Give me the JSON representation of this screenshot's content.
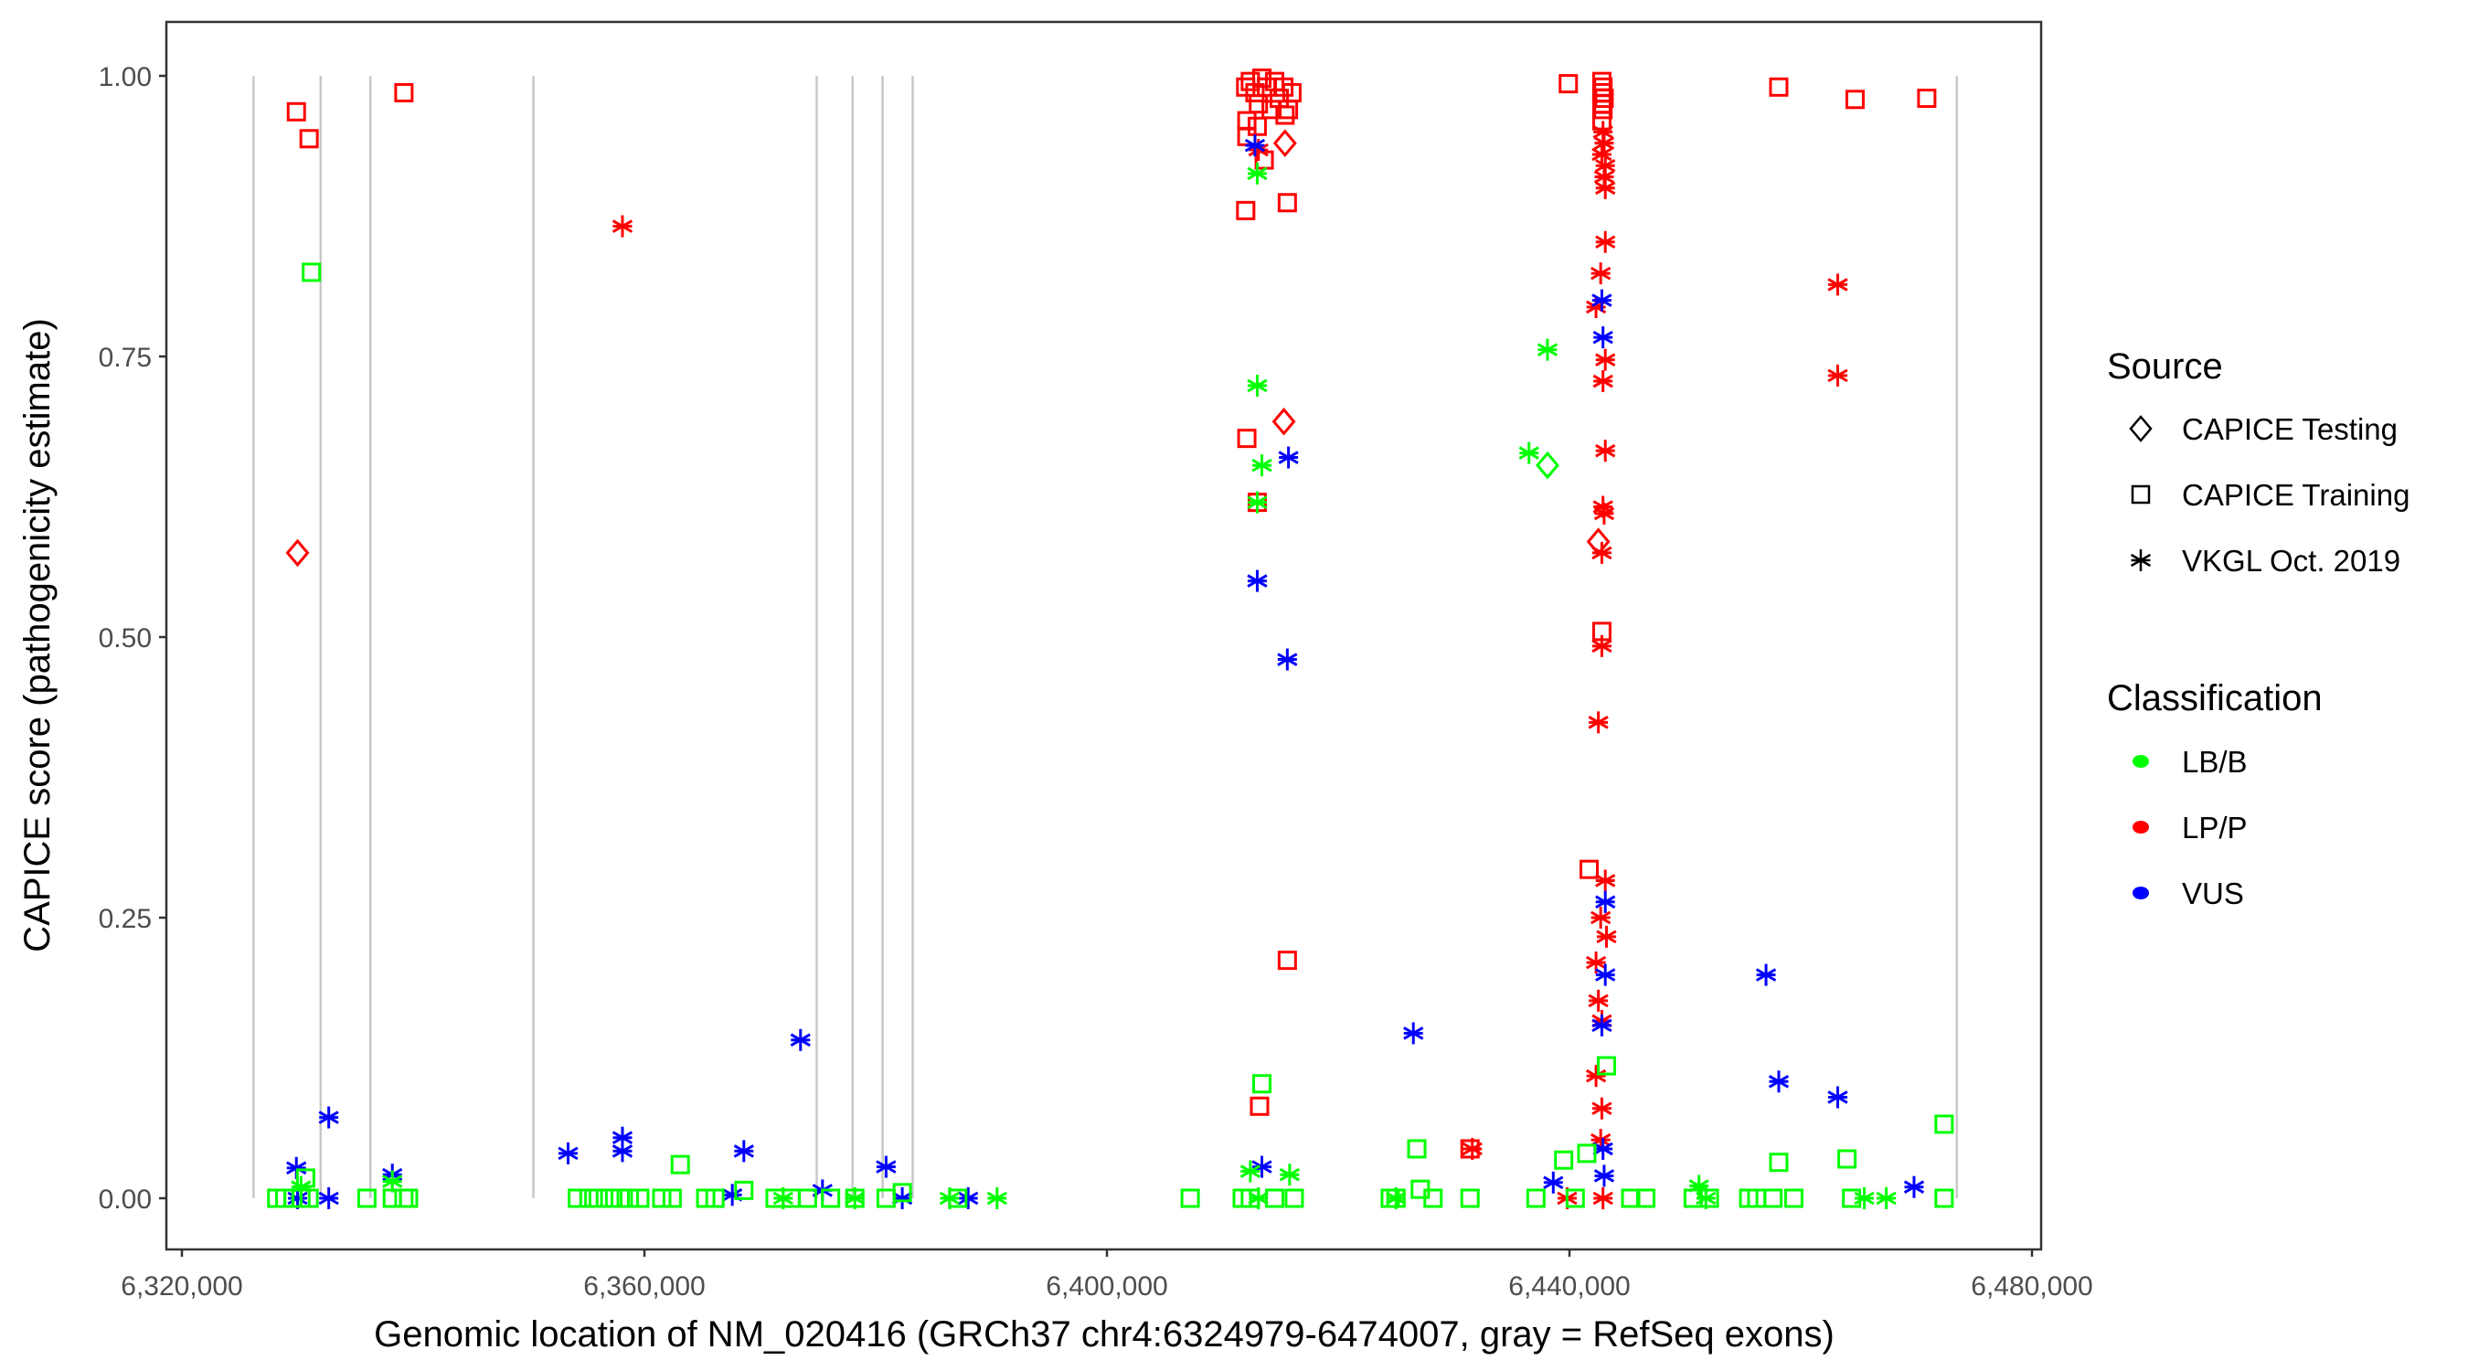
{
  "chart_data": {
    "type": "scatter",
    "xlabel": "Genomic location of NM_020416 (GRCh37 chr4:6324979-6474007, gray = RefSeq exons)",
    "ylabel": "CAPICE score (pathogenicity estimate)",
    "xlim": [
      6318000,
      6480500
    ],
    "ylim": [
      -0.046,
      1.046
    ],
    "x_ticks": [
      6320000,
      6360000,
      6400000,
      6440000,
      6480000
    ],
    "x_tick_labels": [
      "6,320,000",
      "6,360,000",
      "6,400,000",
      "6,440,000",
      "6,480,000"
    ],
    "y_ticks": [
      0,
      0.25,
      0.5,
      0.75,
      1.0
    ],
    "y_tick_labels": [
      "0.00",
      "0.25",
      "0.50",
      "0.75",
      "1.00"
    ],
    "grid": false,
    "exon_lines": [
      6326200,
      6332000,
      6336300,
      6350400,
      6374900,
      6378000,
      6380600,
      6383200,
      6473500
    ],
    "exon_line_color": "#c8c8c8",
    "legend_placement": "right",
    "legend": {
      "source_title": "Source",
      "sources": [
        {
          "key": "T",
          "label": "CAPICE Testing",
          "shape": "diamond"
        },
        {
          "key": "R",
          "label": "CAPICE Training",
          "shape": "square"
        },
        {
          "key": "V",
          "label": "VKGL Oct. 2019",
          "shape": "asterisk"
        }
      ],
      "classification_title": "Classification",
      "classes": [
        {
          "key": "G",
          "label": "LB/B",
          "color": "#00ff00"
        },
        {
          "key": "R",
          "label": "LP/P",
          "color": "#ff0000"
        },
        {
          "key": "B",
          "label": "VUS",
          "color": "#0000ff"
        }
      ]
    },
    "point_fields": [
      "position",
      "score",
      "source",
      "classification"
    ],
    "points": [
      [
        6329900,
        0.968,
        "R",
        "R"
      ],
      [
        6331000,
        0.944,
        "R",
        "R"
      ],
      [
        6339200,
        0.985,
        "R",
        "R"
      ],
      [
        6458100,
        0.99,
        "R",
        "R"
      ],
      [
        6464700,
        0.979,
        "R",
        "R"
      ],
      [
        6470900,
        0.98,
        "R",
        "R"
      ],
      [
        6439900,
        0.993,
        "R",
        "R"
      ],
      [
        6412000,
        0.99,
        "R",
        "R"
      ],
      [
        6412400,
        0.995,
        "R",
        "R"
      ],
      [
        6412800,
        0.985,
        "R",
        "R"
      ],
      [
        6413100,
        0.975,
        "R",
        "R"
      ],
      [
        6413400,
        0.998,
        "R",
        "R"
      ],
      [
        6413800,
        0.99,
        "R",
        "R"
      ],
      [
        6414200,
        0.97,
        "R",
        "R"
      ],
      [
        6414500,
        0.995,
        "R",
        "R"
      ],
      [
        6414900,
        0.98,
        "R",
        "R"
      ],
      [
        6415300,
        0.99,
        "R",
        "R"
      ],
      [
        6415700,
        0.97,
        "R",
        "R"
      ],
      [
        6416000,
        0.985,
        "R",
        "R"
      ],
      [
        6412100,
        0.96,
        "R",
        "R"
      ],
      [
        6413000,
        0.955,
        "R",
        "R"
      ],
      [
        6415400,
        0.965,
        "R",
        "R"
      ],
      [
        6412100,
        0.946,
        "R",
        "R"
      ],
      [
        6413600,
        0.925,
        "R",
        "R"
      ],
      [
        6412000,
        0.88,
        "R",
        "R"
      ],
      [
        6415600,
        0.887,
        "R",
        "R"
      ],
      [
        6412100,
        0.677,
        "R",
        "R"
      ],
      [
        6413000,
        0.62,
        "R",
        "R"
      ],
      [
        6415600,
        0.212,
        "R",
        "R"
      ],
      [
        6413200,
        0.082,
        "R",
        "R"
      ],
      [
        6441700,
        0.293,
        "R",
        "R"
      ],
      [
        6442800,
        0.505,
        "R",
        "R"
      ],
      [
        6431400,
        0.044,
        "R",
        "R"
      ],
      [
        6442800,
        0.995,
        "R",
        "R"
      ],
      [
        6442900,
        0.99,
        "R",
        "R"
      ],
      [
        6442800,
        0.985,
        "R",
        "R"
      ],
      [
        6443000,
        0.98,
        "R",
        "R"
      ],
      [
        6442800,
        0.975,
        "R",
        "R"
      ],
      [
        6442900,
        0.97,
        "R",
        "R"
      ],
      [
        6442800,
        0.96,
        "R",
        "R"
      ],
      [
        6330000,
        0.575,
        "T",
        "R"
      ],
      [
        6415300,
        0.692,
        "T",
        "R"
      ],
      [
        6415400,
        0.94,
        "T",
        "R"
      ],
      [
        6442500,
        0.585,
        "T",
        "R"
      ],
      [
        6358100,
        0.866,
        "V",
        "R"
      ],
      [
        6413100,
        0.934,
        "V",
        "R"
      ],
      [
        6442900,
        0.95,
        "V",
        "R"
      ],
      [
        6443000,
        0.94,
        "V",
        "R"
      ],
      [
        6442800,
        0.93,
        "V",
        "R"
      ],
      [
        6443100,
        0.92,
        "V",
        "R"
      ],
      [
        6443000,
        0.91,
        "V",
        "R"
      ],
      [
        6443100,
        0.9,
        "V",
        "R"
      ],
      [
        6443100,
        0.852,
        "V",
        "R"
      ],
      [
        6442700,
        0.824,
        "V",
        "R"
      ],
      [
        6442300,
        0.794,
        "V",
        "R"
      ],
      [
        6443100,
        0.747,
        "V",
        "R"
      ],
      [
        6442900,
        0.728,
        "V",
        "R"
      ],
      [
        6443100,
        0.666,
        "V",
        "R"
      ],
      [
        6442900,
        0.616,
        "V",
        "R"
      ],
      [
        6443000,
        0.61,
        "V",
        "R"
      ],
      [
        6442800,
        0.575,
        "V",
        "R"
      ],
      [
        6442800,
        0.492,
        "V",
        "R"
      ],
      [
        6442500,
        0.424,
        "V",
        "R"
      ],
      [
        6443100,
        0.283,
        "V",
        "R"
      ],
      [
        6442700,
        0.25,
        "V",
        "R"
      ],
      [
        6443200,
        0.233,
        "V",
        "R"
      ],
      [
        6442300,
        0.21,
        "V",
        "R"
      ],
      [
        6442500,
        0.176,
        "V",
        "R"
      ],
      [
        6442800,
        0.158,
        "V",
        "R"
      ],
      [
        6442300,
        0.109,
        "V",
        "R"
      ],
      [
        6442800,
        0.08,
        "V",
        "R"
      ],
      [
        6442700,
        0.052,
        "V",
        "R"
      ],
      [
        6442900,
        0.0,
        "V",
        "R"
      ],
      [
        6439800,
        0.0,
        "V",
        "R"
      ],
      [
        6431600,
        0.044,
        "V",
        "R"
      ],
      [
        6463200,
        0.814,
        "V",
        "R"
      ],
      [
        6463200,
        0.733,
        "V",
        "R"
      ],
      [
        6329900,
        0.027,
        "V",
        "B"
      ],
      [
        6332700,
        0.072,
        "V",
        "B"
      ],
      [
        6330000,
        0.0,
        "V",
        "B"
      ],
      [
        6332700,
        0.0,
        "V",
        "B"
      ],
      [
        6338200,
        0.021,
        "V",
        "B"
      ],
      [
        6353400,
        0.04,
        "V",
        "B"
      ],
      [
        6358100,
        0.054,
        "V",
        "B"
      ],
      [
        6358100,
        0.042,
        "V",
        "B"
      ],
      [
        6367600,
        0.003,
        "V",
        "B"
      ],
      [
        6368600,
        0.042,
        "V",
        "B"
      ],
      [
        6373500,
        0.141,
        "V",
        "B"
      ],
      [
        6375400,
        0.007,
        "V",
        "B"
      ],
      [
        6380900,
        0.028,
        "V",
        "B"
      ],
      [
        6382300,
        0.0,
        "V",
        "B"
      ],
      [
        6388000,
        0.0,
        "V",
        "B"
      ],
      [
        6413000,
        0.55,
        "V",
        "B"
      ],
      [
        6415600,
        0.48,
        "V",
        "B"
      ],
      [
        6415700,
        0.66,
        "V",
        "B"
      ],
      [
        6413400,
        0.028,
        "V",
        "B"
      ],
      [
        6426500,
        0.147,
        "V",
        "B"
      ],
      [
        6438600,
        0.014,
        "V",
        "B"
      ],
      [
        6442800,
        0.8,
        "V",
        "B"
      ],
      [
        6442900,
        0.767,
        "V",
        "B"
      ],
      [
        6443100,
        0.264,
        "V",
        "B"
      ],
      [
        6443100,
        0.199,
        "V",
        "B"
      ],
      [
        6442800,
        0.154,
        "V",
        "B"
      ],
      [
        6442900,
        0.044,
        "V",
        "B"
      ],
      [
        6443000,
        0.02,
        "V",
        "B"
      ],
      [
        6457000,
        0.199,
        "V",
        "B"
      ],
      [
        6458100,
        0.104,
        "V",
        "B"
      ],
      [
        6463200,
        0.09,
        "V",
        "B"
      ],
      [
        6469800,
        0.01,
        "V",
        "B"
      ],
      [
        6412800,
        0.938,
        "V",
        "B"
      ],
      [
        6413000,
        0.913,
        "V",
        "G"
      ],
      [
        6413000,
        0.724,
        "V",
        "G"
      ],
      [
        6413400,
        0.653,
        "V",
        "G"
      ],
      [
        6413000,
        0.62,
        "V",
        "G"
      ],
      [
        6438100,
        0.756,
        "V",
        "G"
      ],
      [
        6436500,
        0.664,
        "V",
        "G"
      ],
      [
        6415800,
        0.021,
        "V",
        "G"
      ],
      [
        6451200,
        0.011,
        "V",
        "G"
      ],
      [
        6465500,
        0.0,
        "V",
        "G"
      ],
      [
        6467400,
        0.0,
        "V",
        "G"
      ],
      [
        6390500,
        0.0,
        "V",
        "G"
      ],
      [
        6386400,
        0.0,
        "V",
        "G"
      ],
      [
        6378200,
        0.0,
        "V",
        "G"
      ],
      [
        6372000,
        0.0,
        "V",
        "G"
      ],
      [
        6412400,
        0.024,
        "V",
        "G"
      ],
      [
        6413100,
        0.0,
        "V",
        "G"
      ],
      [
        6425000,
        0.0,
        "V",
        "G"
      ],
      [
        6451800,
        0.0,
        "V",
        "G"
      ],
      [
        6330300,
        0.01,
        "V",
        "G"
      ],
      [
        6338200,
        0.015,
        "V",
        "G"
      ],
      [
        6331200,
        0.825,
        "R",
        "G"
      ],
      [
        6413400,
        0.102,
        "R",
        "G"
      ],
      [
        6426800,
        0.044,
        "R",
        "G"
      ],
      [
        6443200,
        0.118,
        "R",
        "G"
      ],
      [
        6472400,
        0.066,
        "R",
        "G"
      ],
      [
        6458100,
        0.032,
        "R",
        "G"
      ],
      [
        6464000,
        0.035,
        "R",
        "G"
      ],
      [
        6363100,
        0.03,
        "R",
        "G"
      ],
      [
        6330700,
        0.018,
        "R",
        "G"
      ],
      [
        6427100,
        0.008,
        "R",
        "G"
      ],
      [
        6439500,
        0.034,
        "R",
        "G"
      ],
      [
        6441500,
        0.04,
        "R",
        "G"
      ],
      [
        6328200,
        0.0,
        "R",
        "G"
      ],
      [
        6328900,
        0.0,
        "R",
        "G"
      ],
      [
        6329600,
        0.0,
        "R",
        "G"
      ],
      [
        6330300,
        0.0,
        "R",
        "G"
      ],
      [
        6331000,
        0.0,
        "R",
        "G"
      ],
      [
        6336000,
        0.0,
        "R",
        "G"
      ],
      [
        6338200,
        0.0,
        "R",
        "G"
      ],
      [
        6339200,
        0.0,
        "R",
        "G"
      ],
      [
        6339600,
        0.0,
        "R",
        "G"
      ],
      [
        6354200,
        0.0,
        "R",
        "G"
      ],
      [
        6355200,
        0.0,
        "R",
        "G"
      ],
      [
        6356000,
        0.0,
        "R",
        "G"
      ],
      [
        6357000,
        0.0,
        "R",
        "G"
      ],
      [
        6357900,
        0.0,
        "R",
        "G"
      ],
      [
        6358700,
        0.0,
        "R",
        "G"
      ],
      [
        6359600,
        0.0,
        "R",
        "G"
      ],
      [
        6361500,
        0.0,
        "R",
        "G"
      ],
      [
        6362400,
        0.0,
        "R",
        "G"
      ],
      [
        6365300,
        0.0,
        "R",
        "G"
      ],
      [
        6366100,
        0.0,
        "R",
        "G"
      ],
      [
        6368600,
        0.007,
        "R",
        "G"
      ],
      [
        6371300,
        0.0,
        "R",
        "G"
      ],
      [
        6372700,
        0.0,
        "R",
        "G"
      ],
      [
        6374100,
        0.0,
        "R",
        "G"
      ],
      [
        6376100,
        0.0,
        "R",
        "G"
      ],
      [
        6378200,
        0.0,
        "R",
        "G"
      ],
      [
        6380900,
        0.0,
        "R",
        "G"
      ],
      [
        6382300,
        0.005,
        "R",
        "G"
      ],
      [
        6387100,
        0.0,
        "R",
        "G"
      ],
      [
        6407200,
        0.0,
        "R",
        "G"
      ],
      [
        6411700,
        0.0,
        "R",
        "G"
      ],
      [
        6412400,
        0.0,
        "R",
        "G"
      ],
      [
        6414500,
        0.0,
        "R",
        "G"
      ],
      [
        6416200,
        0.0,
        "R",
        "G"
      ],
      [
        6424500,
        0.0,
        "R",
        "G"
      ],
      [
        6425000,
        0.0,
        "R",
        "G"
      ],
      [
        6428200,
        0.0,
        "R",
        "G"
      ],
      [
        6431400,
        0.0,
        "R",
        "G"
      ],
      [
        6437100,
        0.0,
        "R",
        "G"
      ],
      [
        6440500,
        0.0,
        "R",
        "G"
      ],
      [
        6445300,
        0.0,
        "R",
        "G"
      ],
      [
        6446600,
        0.0,
        "R",
        "G"
      ],
      [
        6450700,
        0.0,
        "R",
        "G"
      ],
      [
        6452100,
        0.0,
        "R",
        "G"
      ],
      [
        6455500,
        0.0,
        "R",
        "G"
      ],
      [
        6456200,
        0.0,
        "R",
        "G"
      ],
      [
        6457600,
        0.0,
        "R",
        "G"
      ],
      [
        6459400,
        0.0,
        "R",
        "G"
      ],
      [
        6464400,
        0.0,
        "R",
        "G"
      ],
      [
        6472400,
        0.0,
        "R",
        "G"
      ],
      [
        6438100,
        0.653,
        "T",
        "G"
      ]
    ]
  }
}
